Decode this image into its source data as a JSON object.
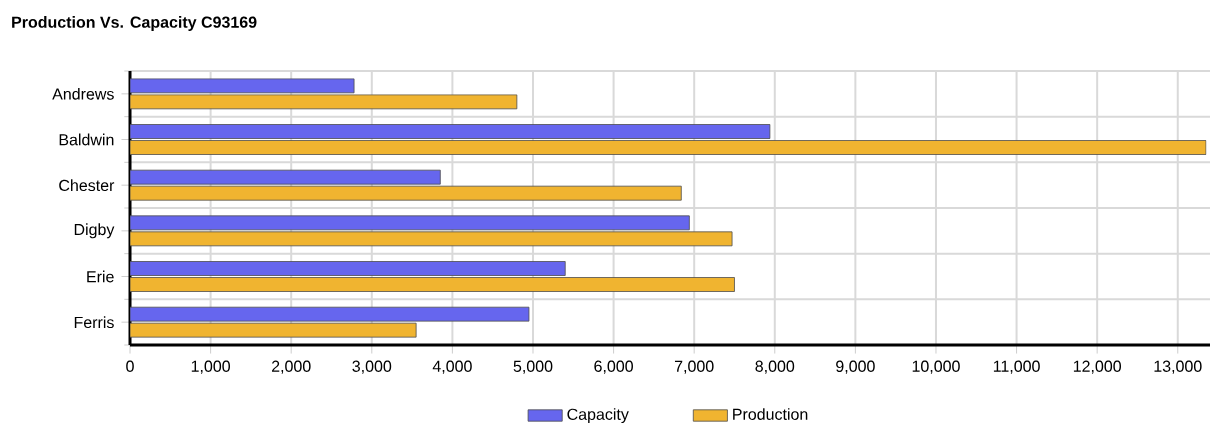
{
  "chart_data": {
    "type": "bar",
    "orientation": "horizontal",
    "title": "Production Vs. Capacity  C93169",
    "categories": [
      "Andrews",
      "Baldwin",
      "Chester",
      "Digby",
      "Erie",
      "Ferris"
    ],
    "series": [
      {
        "name": "Capacity",
        "color": "#6666ee",
        "values": [
          2780,
          7940,
          3850,
          6940,
          5400,
          4950
        ]
      },
      {
        "name": "Production",
        "color": "#f0b430",
        "values": [
          4800,
          13350,
          6840,
          7470,
          7500,
          3550
        ]
      }
    ],
    "xlim": [
      0,
      13400
    ],
    "xticks": [
      {
        "value": 0,
        "label": "0"
      },
      {
        "value": 1000,
        "label": "1,000"
      },
      {
        "value": 2000,
        "label": "2,000"
      },
      {
        "value": 3000,
        "label": "3,000"
      },
      {
        "value": 4000,
        "label": "4,000"
      },
      {
        "value": 5000,
        "label": "5,000"
      },
      {
        "value": 6000,
        "label": "6,000"
      },
      {
        "value": 7000,
        "label": "7,000"
      },
      {
        "value": 8000,
        "label": "8,000"
      },
      {
        "value": 9000,
        "label": "9,000"
      },
      {
        "value": 10000,
        "label": "10,000"
      },
      {
        "value": 11000,
        "label": "11,000"
      },
      {
        "value": 12000,
        "label": "12,000"
      },
      {
        "value": 13000,
        "label": "13,000"
      }
    ],
    "grid": true,
    "legend": "bottom"
  }
}
